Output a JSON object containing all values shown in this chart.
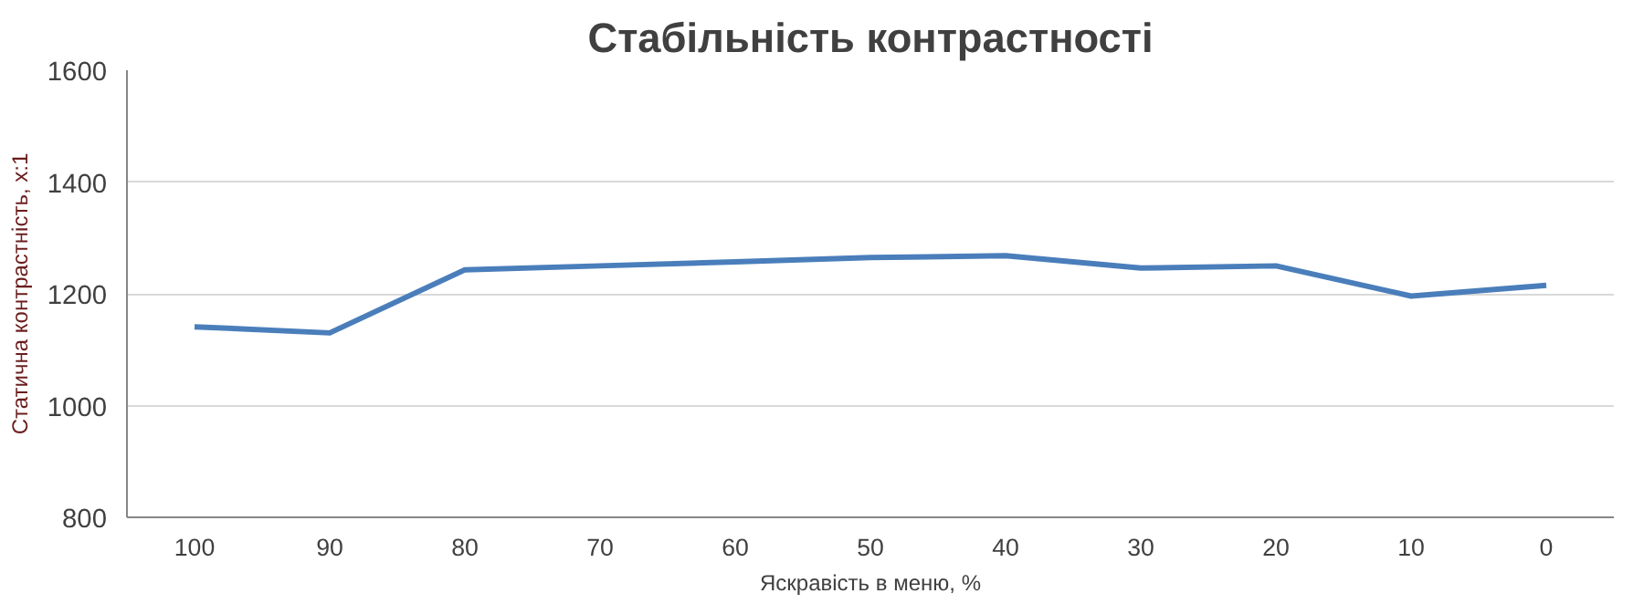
{
  "chart_data": {
    "type": "line",
    "title": "Стабільність контрастності",
    "xlabel": "Яскравість в меню, %",
    "ylabel": "Статична контрастність, x:1",
    "categories": [
      "100",
      "90",
      "80",
      "70",
      "60",
      "50",
      "40",
      "30",
      "20",
      "10",
      "0"
    ],
    "series": [
      {
        "color": "#4a7ebb",
        "values": [
          1141,
          1130,
          1243,
          1250,
          1257,
          1265,
          1268,
          1246,
          1250,
          1196,
          1215
        ]
      }
    ],
    "ylim": [
      800,
      1600
    ],
    "yticks": [
      800,
      1000,
      1200,
      1400,
      1600
    ],
    "grid": "y",
    "marker": "none",
    "line_style": "solid"
  }
}
